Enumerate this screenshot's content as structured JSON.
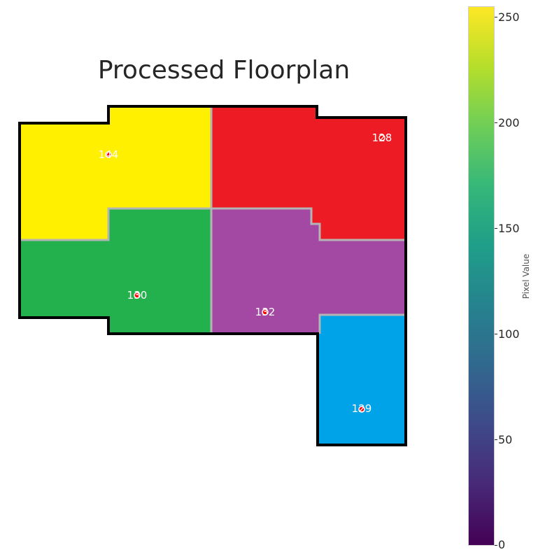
{
  "title": "Processed Floorplan",
  "colorbar": {
    "label": "Pixel Value",
    "ticks": [
      "0",
      "50",
      "100",
      "150",
      "200",
      "250"
    ],
    "tick_values": [
      0,
      50,
      100,
      150,
      200,
      250
    ],
    "min": 0,
    "max": 255,
    "colormap": "viridis"
  },
  "rooms": [
    {
      "id": "room-yellow",
      "label": "144",
      "color": "#fff000"
    },
    {
      "id": "room-red",
      "label": "128",
      "color": "#ed1c24"
    },
    {
      "id": "room-green",
      "label": "130",
      "color": "#22b14c"
    },
    {
      "id": "room-purple",
      "label": "132",
      "color": "#a349a4"
    },
    {
      "id": "room-blue",
      "label": "129",
      "color": "#00a2e8"
    }
  ],
  "colors": {
    "outline": "#000000",
    "interior_wall": "#b4b4b4",
    "marker": "#ff0000"
  }
}
